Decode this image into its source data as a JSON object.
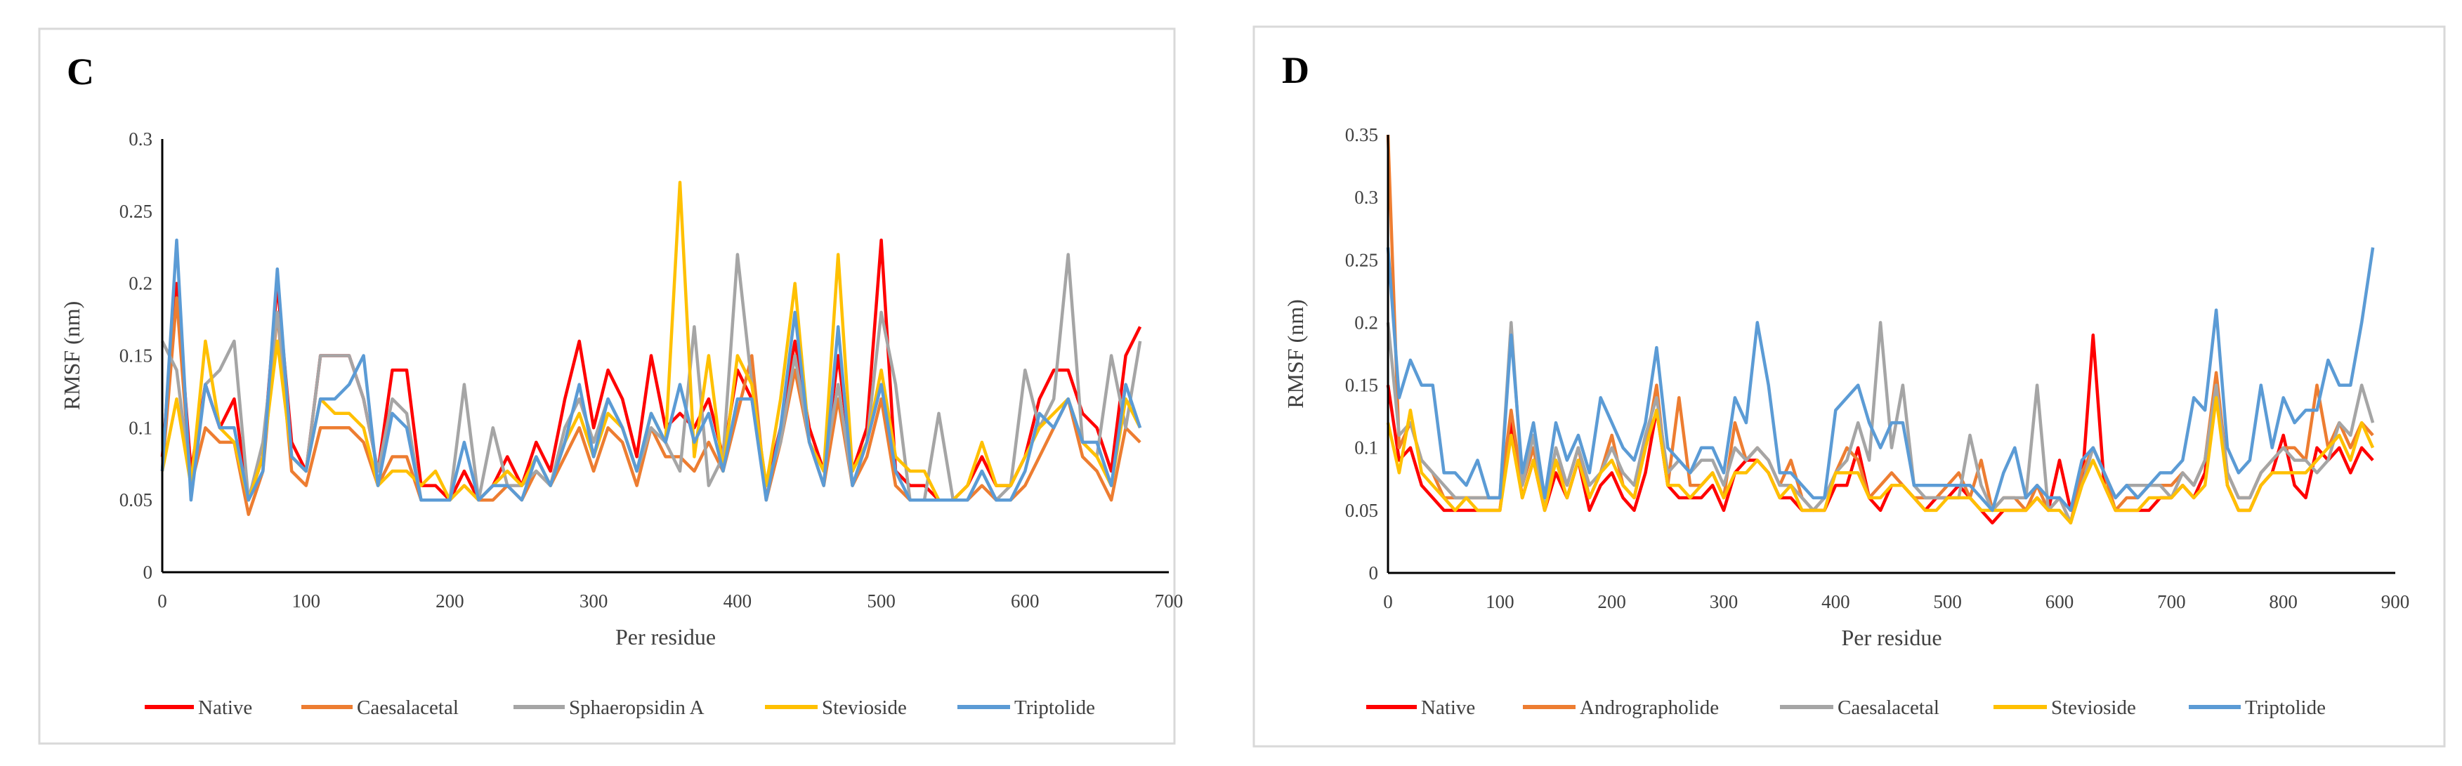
{
  "chart_data": [
    {
      "panel_label": "C",
      "type": "line",
      "xlabel": "Per residue",
      "ylabel": "RMSF (nm)",
      "xlim": [
        0,
        700
      ],
      "ylim": [
        0,
        0.3
      ],
      "xticks": [
        "0",
        "100",
        "200",
        "300",
        "400",
        "500",
        "600",
        "700"
      ],
      "yticks": [
        "0",
        "0.05",
        "0.1",
        "0.15",
        "0.2",
        "0.25",
        "0.3"
      ],
      "legend_position": "bottom",
      "x": [
        0,
        10,
        20,
        30,
        40,
        50,
        60,
        70,
        80,
        90,
        100,
        110,
        120,
        130,
        140,
        150,
        160,
        170,
        180,
        190,
        200,
        210,
        220,
        230,
        240,
        250,
        260,
        270,
        280,
        290,
        300,
        310,
        320,
        330,
        340,
        350,
        360,
        370,
        380,
        390,
        400,
        410,
        420,
        430,
        440,
        450,
        460,
        470,
        480,
        490,
        500,
        510,
        520,
        530,
        540,
        550,
        560,
        570,
        580,
        590,
        600,
        610,
        620,
        630,
        640,
        650,
        660,
        670,
        680
      ],
      "series": [
        {
          "name": "Native",
          "color": "#FF0000",
          "values": [
            0.08,
            0.2,
            0.07,
            0.13,
            0.1,
            0.12,
            0.05,
            0.08,
            0.2,
            0.09,
            0.07,
            0.15,
            0.15,
            0.15,
            0.12,
            0.07,
            0.14,
            0.14,
            0.06,
            0.06,
            0.05,
            0.07,
            0.05,
            0.06,
            0.08,
            0.06,
            0.09,
            0.07,
            0.12,
            0.16,
            0.1,
            0.14,
            0.12,
            0.08,
            0.15,
            0.1,
            0.11,
            0.1,
            0.12,
            0.08,
            0.14,
            0.12,
            0.06,
            0.1,
            0.16,
            0.1,
            0.07,
            0.15,
            0.07,
            0.1,
            0.23,
            0.07,
            0.06,
            0.06,
            0.05,
            0.05,
            0.06,
            0.08,
            0.06,
            0.06,
            0.08,
            0.12,
            0.14,
            0.14,
            0.11,
            0.1,
            0.07,
            0.15,
            0.17
          ]
        },
        {
          "name": "Caesalacetal",
          "color": "#ED7D31",
          "values": [
            0.07,
            0.19,
            0.06,
            0.1,
            0.09,
            0.09,
            0.04,
            0.07,
            0.18,
            0.07,
            0.06,
            0.1,
            0.1,
            0.1,
            0.09,
            0.06,
            0.08,
            0.08,
            0.05,
            0.05,
            0.05,
            0.06,
            0.05,
            0.05,
            0.06,
            0.05,
            0.07,
            0.06,
            0.08,
            0.1,
            0.07,
            0.1,
            0.09,
            0.06,
            0.1,
            0.08,
            0.08,
            0.07,
            0.09,
            0.07,
            0.11,
            0.15,
            0.05,
            0.09,
            0.14,
            0.09,
            0.06,
            0.12,
            0.06,
            0.08,
            0.12,
            0.06,
            0.05,
            0.05,
            0.05,
            0.05,
            0.05,
            0.06,
            0.05,
            0.05,
            0.06,
            0.08,
            0.1,
            0.12,
            0.08,
            0.07,
            0.05,
            0.1,
            0.09
          ]
        },
        {
          "name": "Sphaeropsidin A",
          "color": "#A5A5A5",
          "values": [
            0.16,
            0.14,
            0.06,
            0.13,
            0.14,
            0.16,
            0.05,
            0.09,
            0.18,
            0.08,
            0.07,
            0.15,
            0.15,
            0.15,
            0.12,
            0.07,
            0.12,
            0.11,
            0.05,
            0.05,
            0.05,
            0.13,
            0.05,
            0.1,
            0.06,
            0.06,
            0.07,
            0.06,
            0.1,
            0.12,
            0.09,
            0.12,
            0.1,
            0.07,
            0.1,
            0.09,
            0.07,
            0.17,
            0.06,
            0.08,
            0.22,
            0.13,
            0.06,
            0.09,
            0.15,
            0.09,
            0.07,
            0.13,
            0.06,
            0.09,
            0.18,
            0.13,
            0.05,
            0.05,
            0.11,
            0.05,
            0.05,
            0.07,
            0.05,
            0.06,
            0.14,
            0.1,
            0.12,
            0.22,
            0.09,
            0.08,
            0.15,
            0.1,
            0.16
          ]
        },
        {
          "name": "Stevioside",
          "color": "#FFC000",
          "values": [
            0.07,
            0.12,
            0.06,
            0.16,
            0.1,
            0.09,
            0.05,
            0.08,
            0.16,
            0.08,
            0.07,
            0.12,
            0.11,
            0.11,
            0.1,
            0.06,
            0.07,
            0.07,
            0.06,
            0.07,
            0.05,
            0.06,
            0.05,
            0.06,
            0.07,
            0.06,
            0.08,
            0.06,
            0.09,
            0.11,
            0.08,
            0.11,
            0.1,
            0.07,
            0.11,
            0.09,
            0.27,
            0.08,
            0.15,
            0.07,
            0.15,
            0.13,
            0.06,
            0.12,
            0.2,
            0.09,
            0.07,
            0.22,
            0.07,
            0.09,
            0.14,
            0.08,
            0.07,
            0.07,
            0.05,
            0.05,
            0.06,
            0.09,
            0.06,
            0.06,
            0.08,
            0.1,
            0.11,
            0.12,
            0.09,
            0.08,
            0.06,
            0.12,
            0.1
          ]
        },
        {
          "name": "Triptolide",
          "color": "#5B9BD5",
          "values": [
            0.07,
            0.23,
            0.05,
            0.13,
            0.1,
            0.1,
            0.05,
            0.07,
            0.21,
            0.08,
            0.07,
            0.12,
            0.12,
            0.13,
            0.15,
            0.06,
            0.11,
            0.1,
            0.05,
            0.05,
            0.05,
            0.09,
            0.05,
            0.06,
            0.06,
            0.05,
            0.08,
            0.06,
            0.09,
            0.13,
            0.08,
            0.12,
            0.1,
            0.07,
            0.11,
            0.09,
            0.13,
            0.09,
            0.11,
            0.07,
            0.12,
            0.12,
            0.05,
            0.1,
            0.18,
            0.09,
            0.06,
            0.17,
            0.06,
            0.09,
            0.13,
            0.07,
            0.05,
            0.05,
            0.05,
            0.05,
            0.05,
            0.07,
            0.05,
            0.05,
            0.07,
            0.11,
            0.1,
            0.12,
            0.09,
            0.09,
            0.06,
            0.13,
            0.1
          ]
        }
      ]
    },
    {
      "panel_label": "D",
      "type": "line",
      "xlabel": "Per residue",
      "ylabel": "RMSF (nm)",
      "xlim": [
        0,
        900
      ],
      "ylim": [
        0,
        0.35
      ],
      "xticks": [
        "0",
        "100",
        "200",
        "300",
        "400",
        "500",
        "600",
        "700",
        "800",
        "900"
      ],
      "yticks": [
        "0",
        "0.05",
        "0.1",
        "0.15",
        "0.2",
        "0.25",
        "0.3",
        "0.35"
      ],
      "legend_position": "bottom",
      "x": [
        0,
        10,
        20,
        30,
        40,
        50,
        60,
        70,
        80,
        90,
        100,
        110,
        120,
        130,
        140,
        150,
        160,
        170,
        180,
        190,
        200,
        210,
        220,
        230,
        240,
        250,
        260,
        270,
        280,
        290,
        300,
        310,
        320,
        330,
        340,
        350,
        360,
        370,
        380,
        390,
        400,
        410,
        420,
        430,
        440,
        450,
        460,
        470,
        480,
        490,
        500,
        510,
        520,
        530,
        540,
        550,
        560,
        570,
        580,
        590,
        600,
        610,
        620,
        630,
        640,
        650,
        660,
        670,
        680,
        690,
        700,
        710,
        720,
        730,
        740,
        750,
        760,
        770,
        780,
        790,
        800,
        810,
        820,
        830,
        840,
        850,
        860,
        870,
        880
      ],
      "series": [
        {
          "name": "Native",
          "color": "#FF0000",
          "values": [
            0.15,
            0.09,
            0.1,
            0.07,
            0.06,
            0.05,
            0.05,
            0.05,
            0.05,
            0.05,
            0.05,
            0.12,
            0.06,
            0.09,
            0.05,
            0.08,
            0.06,
            0.09,
            0.05,
            0.07,
            0.08,
            0.06,
            0.05,
            0.08,
            0.13,
            0.07,
            0.06,
            0.06,
            0.06,
            0.07,
            0.05,
            0.08,
            0.09,
            0.09,
            0.08,
            0.06,
            0.06,
            0.05,
            0.05,
            0.05,
            0.07,
            0.07,
            0.1,
            0.06,
            0.05,
            0.07,
            0.07,
            0.06,
            0.05,
            0.06,
            0.06,
            0.07,
            0.06,
            0.05,
            0.04,
            0.05,
            0.05,
            0.05,
            0.06,
            0.05,
            0.09,
            0.05,
            0.07,
            0.19,
            0.07,
            0.05,
            0.05,
            0.05,
            0.05,
            0.06,
            0.06,
            0.07,
            0.06,
            0.08,
            0.15,
            0.07,
            0.05,
            0.05,
            0.07,
            0.08,
            0.11,
            0.07,
            0.06,
            0.1,
            0.09,
            0.1,
            0.08,
            0.1,
            0.09
          ]
        },
        {
          "name": "Andrographolide",
          "color": "#ED7D31",
          "values": [
            0.35,
            0.1,
            0.12,
            0.09,
            0.08,
            0.06,
            0.06,
            0.06,
            0.06,
            0.06,
            0.06,
            0.13,
            0.07,
            0.1,
            0.05,
            0.09,
            0.07,
            0.1,
            0.06,
            0.08,
            0.11,
            0.07,
            0.06,
            0.1,
            0.15,
            0.07,
            0.14,
            0.07,
            0.07,
            0.08,
            0.06,
            0.12,
            0.09,
            0.1,
            0.09,
            0.07,
            0.09,
            0.06,
            0.05,
            0.06,
            0.08,
            0.1,
            0.09,
            0.06,
            0.07,
            0.08,
            0.07,
            0.06,
            0.06,
            0.06,
            0.07,
            0.08,
            0.06,
            0.09,
            0.05,
            0.06,
            0.06,
            0.05,
            0.07,
            0.05,
            0.06,
            0.04,
            0.08,
            0.1,
            0.08,
            0.05,
            0.06,
            0.06,
            0.07,
            0.07,
            0.07,
            0.08,
            0.07,
            0.09,
            0.16,
            0.08,
            0.06,
            0.06,
            0.08,
            0.09,
            0.1,
            0.1,
            0.09,
            0.15,
            0.1,
            0.12,
            0.1,
            0.12,
            0.11
          ]
        },
        {
          "name": "Caesalacetal",
          "color": "#A5A5A5",
          "values": [
            0.2,
            0.11,
            0.12,
            0.09,
            0.08,
            0.07,
            0.06,
            0.06,
            0.06,
            0.06,
            0.06,
            0.2,
            0.07,
            0.11,
            0.05,
            0.1,
            0.07,
            0.1,
            0.07,
            0.08,
            0.1,
            0.08,
            0.07,
            0.11,
            0.14,
            0.08,
            0.09,
            0.08,
            0.09,
            0.09,
            0.07,
            0.1,
            0.09,
            0.1,
            0.09,
            0.07,
            0.07,
            0.06,
            0.05,
            0.06,
            0.08,
            0.09,
            0.12,
            0.09,
            0.2,
            0.1,
            0.15,
            0.07,
            0.06,
            0.06,
            0.06,
            0.06,
            0.11,
            0.07,
            0.05,
            0.06,
            0.06,
            0.06,
            0.15,
            0.05,
            0.06,
            0.04,
            0.07,
            0.1,
            0.08,
            0.06,
            0.07,
            0.07,
            0.07,
            0.07,
            0.06,
            0.08,
            0.07,
            0.09,
            0.15,
            0.08,
            0.06,
            0.06,
            0.08,
            0.09,
            0.1,
            0.09,
            0.09,
            0.08,
            0.09,
            0.12,
            0.11,
            0.15,
            0.12
          ]
        },
        {
          "name": "Stevioside",
          "color": "#FFC000",
          "values": [
            0.12,
            0.08,
            0.13,
            0.08,
            0.07,
            0.06,
            0.05,
            0.06,
            0.05,
            0.05,
            0.05,
            0.11,
            0.06,
            0.09,
            0.05,
            0.09,
            0.06,
            0.09,
            0.06,
            0.08,
            0.09,
            0.07,
            0.06,
            0.1,
            0.13,
            0.07,
            0.07,
            0.06,
            0.07,
            0.08,
            0.06,
            0.08,
            0.08,
            0.09,
            0.08,
            0.06,
            0.07,
            0.05,
            0.05,
            0.05,
            0.08,
            0.08,
            0.08,
            0.06,
            0.06,
            0.07,
            0.07,
            0.06,
            0.05,
            0.05,
            0.06,
            0.06,
            0.06,
            0.05,
            0.05,
            0.05,
            0.05,
            0.05,
            0.06,
            0.05,
            0.05,
            0.04,
            0.07,
            0.09,
            0.07,
            0.05,
            0.05,
            0.05,
            0.06,
            0.06,
            0.06,
            0.07,
            0.06,
            0.07,
            0.14,
            0.07,
            0.05,
            0.05,
            0.07,
            0.08,
            0.08,
            0.08,
            0.08,
            0.09,
            0.1,
            0.11,
            0.09,
            0.12,
            0.1
          ]
        },
        {
          "name": "Triptolide",
          "color": "#5B9BD5",
          "values": [
            0.26,
            0.14,
            0.17,
            0.15,
            0.15,
            0.08,
            0.08,
            0.07,
            0.09,
            0.06,
            0.06,
            0.19,
            0.08,
            0.12,
            0.06,
            0.12,
            0.09,
            0.11,
            0.08,
            0.14,
            0.12,
            0.1,
            0.09,
            0.12,
            0.18,
            0.1,
            0.09,
            0.08,
            0.1,
            0.1,
            0.08,
            0.14,
            0.12,
            0.2,
            0.15,
            0.08,
            0.08,
            0.07,
            0.06,
            0.06,
            0.13,
            0.14,
            0.15,
            0.12,
            0.1,
            0.12,
            0.12,
            0.07,
            0.07,
            0.07,
            0.07,
            0.07,
            0.07,
            0.06,
            0.05,
            0.08,
            0.1,
            0.06,
            0.07,
            0.06,
            0.06,
            0.05,
            0.09,
            0.1,
            0.08,
            0.06,
            0.07,
            0.06,
            0.07,
            0.08,
            0.08,
            0.09,
            0.14,
            0.13,
            0.21,
            0.1,
            0.08,
            0.09,
            0.15,
            0.1,
            0.14,
            0.12,
            0.13,
            0.13,
            0.17,
            0.15,
            0.15,
            0.2,
            0.26
          ]
        }
      ]
    }
  ]
}
